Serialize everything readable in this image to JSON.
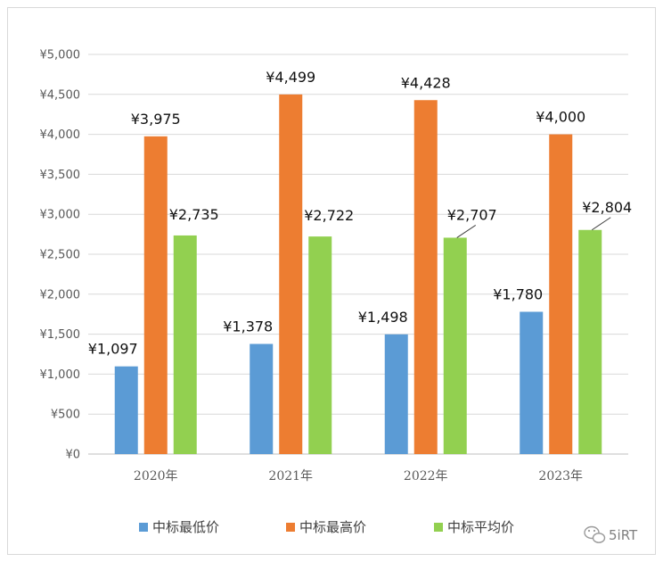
{
  "chart_data": {
    "type": "bar",
    "categories": [
      "2020年",
      "2021年",
      "2022年",
      "2023年"
    ],
    "series": [
      {
        "name": "中标最低价",
        "values": [
          1097,
          1378,
          1498,
          1780
        ],
        "labels": [
          "¥1,097",
          "¥1,378",
          "¥1,498",
          "¥1,780"
        ],
        "color": "#5b9bd5"
      },
      {
        "name": "中标最高价",
        "values": [
          3975,
          4499,
          4428,
          4000
        ],
        "labels": [
          "¥3,975",
          "¥4,499",
          "¥4,428",
          "¥4,000"
        ],
        "color": "#ed7d31"
      },
      {
        "name": "中标平均价",
        "values": [
          2735,
          2722,
          2707,
          2804
        ],
        "labels": [
          "¥2,735",
          "¥2,722",
          "¥2,707",
          "¥2,804"
        ],
        "color": "#92d050"
      }
    ],
    "ylim": [
      0,
      5000
    ],
    "yticks": [
      "¥0",
      "¥500",
      "¥1,000",
      "¥1,500",
      "¥2,000",
      "¥2,500",
      "¥3,000",
      "¥3,500",
      "¥4,000",
      "¥4,500",
      "¥5,000"
    ],
    "grid": true,
    "legend_position": "bottom"
  },
  "watermark": {
    "text": "5iRT",
    "icon": "wechat-icon"
  }
}
